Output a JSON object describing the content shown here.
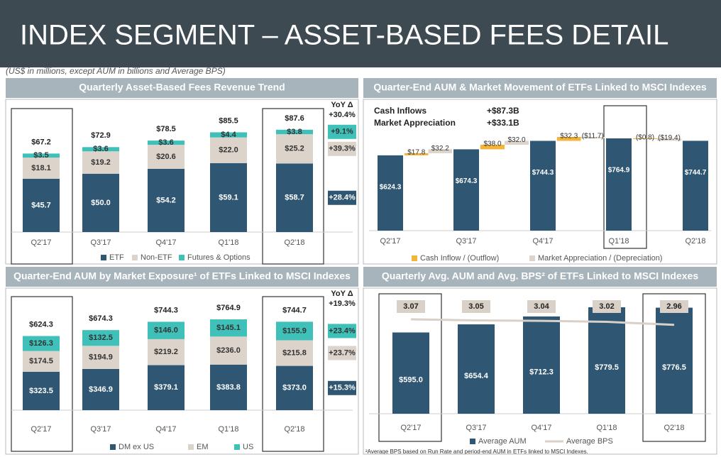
{
  "title": "INDEX SEGMENT – ASSET-BASED FEES DETAIL",
  "subtitle": "(US$ in millions, except AUM in billions and Average BPS)",
  "footnote": "²Average BPS based on Run Rate and period-end AUM in ETFs linked to MSCI Indexes.",
  "chart_data": [
    {
      "type": "stacked-bar",
      "title": "Quarterly Asset-Based Fees Revenue Trend",
      "categories": [
        "Q2'17",
        "Q3'17",
        "Q4'17",
        "Q1'18",
        "Q2'18"
      ],
      "series": [
        {
          "name": "ETF",
          "color": "#2f5672",
          "values": [
            45.7,
            50.0,
            54.2,
            59.1,
            58.7
          ],
          "value_labels": [
            "$45.7",
            "$50.0",
            "$54.2",
            "$59.1",
            "$58.7"
          ]
        },
        {
          "name": "Non-ETF",
          "color": "#dcd3ca",
          "values": [
            18.1,
            19.2,
            20.6,
            22.0,
            25.2
          ],
          "value_labels": [
            "$18.1",
            "$19.2",
            "$20.6",
            "$22.0",
            "$25.2"
          ]
        },
        {
          "name": "Futures & Options",
          "color": "#3fc0b9",
          "values": [
            3.5,
            3.6,
            3.6,
            4.4,
            3.8
          ],
          "value_labels": [
            "$3.5",
            "$3.6",
            "$3.6",
            "$4.4",
            "$3.8"
          ]
        }
      ],
      "totals": {
        "values": [
          67.2,
          72.9,
          78.5,
          85.5,
          87.6
        ],
        "value_labels": [
          "$67.2",
          "$72.9",
          "$78.5",
          "$85.5",
          "$87.6"
        ]
      },
      "yoy": {
        "title": "YoY Δ",
        "total": {
          "value": 30.4,
          "label": "+30.4%"
        },
        "series": [
          {
            "value": 28.4,
            "label": "+28.4%"
          },
          {
            "value": 39.3,
            "label": "+39.3%"
          },
          {
            "value": 9.1,
            "label": "+9.1%"
          }
        ]
      }
    },
    {
      "type": "waterfall",
      "title": "Quarter-End AUM & Market Movement of ETFs Linked to MSCI Indexes",
      "categories": [
        "Q2'17",
        "Q3'17",
        "Q4'17",
        "Q1'18",
        "Q2'18"
      ],
      "values": [
        624.3,
        674.3,
        744.3,
        764.9,
        744.7
      ],
      "value_labels": [
        "$624.3",
        "$674.3",
        "$744.3",
        "$764.9",
        "$744.7"
      ],
      "color": "#2f5672",
      "flows": [
        {
          "name": "Cash Inflow / (Outflow)",
          "color": "#f4b43a",
          "values": [
            17.8,
            38.0,
            32.3,
            -0.8
          ],
          "value_labels": [
            "$17.8",
            "$38.0",
            "$32.3",
            "($0.8)"
          ]
        },
        {
          "name": "Market Appreciation / (Depreciation)",
          "color": "#dcd3ca",
          "values": [
            32.2,
            32.0,
            -11.7,
            -19.4
          ],
          "value_labels": [
            "$32.2",
            "$32.0",
            "($11.7)",
            "($19.4)"
          ]
        }
      ],
      "summary": [
        {
          "name": "Cash Inflows",
          "value": 87.3,
          "label": "+$87.3B"
        },
        {
          "name": "Market Appreciation",
          "value": 33.1,
          "label": "+$33.1B"
        }
      ]
    },
    {
      "type": "stacked-bar",
      "title": "Quarter-End AUM by Market Exposure¹ of ETFs Linked to MSCI Indexes",
      "categories": [
        "Q2'17",
        "Q3'17",
        "Q4'17",
        "Q1'18",
        "Q2'18"
      ],
      "series": [
        {
          "name": "DM ex US",
          "color": "#2f5672",
          "values": [
            323.5,
            346.9,
            379.1,
            383.8,
            373.0
          ],
          "value_labels": [
            "$323.5",
            "$346.9",
            "$379.1",
            "$383.8",
            "$373.0"
          ]
        },
        {
          "name": "EM",
          "color": "#dcd3ca",
          "values": [
            174.5,
            194.9,
            219.2,
            236.0,
            215.8
          ],
          "value_labels": [
            "$174.5",
            "$194.9",
            "$219.2",
            "$236.0",
            "$215.8"
          ]
        },
        {
          "name": "US",
          "color": "#3fc0b9",
          "values": [
            126.3,
            132.5,
            146.0,
            145.1,
            155.9
          ],
          "value_labels": [
            "$126.3",
            "$132.5",
            "$146.0",
            "$145.1",
            "$155.9"
          ]
        }
      ],
      "totals": {
        "values": [
          624.3,
          674.3,
          744.3,
          764.9,
          744.7
        ],
        "value_labels": [
          "$624.3",
          "$674.3",
          "$744.3",
          "$764.9",
          "$744.7"
        ]
      },
      "yoy": {
        "title": "YoY Δ",
        "total": {
          "value": 19.3,
          "label": "+19.3%"
        },
        "series": [
          {
            "value": 15.3,
            "label": "+15.3%"
          },
          {
            "value": 23.7,
            "label": "+23.7%"
          },
          {
            "value": 23.4,
            "label": "+23.4%"
          }
        ]
      }
    },
    {
      "type": "bar-line",
      "title": "Quarterly Avg. AUM and Avg. BPS² of ETFs Linked to MSCI Indexes",
      "categories": [
        "Q2'17",
        "Q3'17",
        "Q4'17",
        "Q1'18",
        "Q2'18"
      ],
      "series": [
        {
          "name": "Average AUM",
          "color": "#2f5672",
          "values": [
            595.0,
            654.4,
            712.3,
            779.5,
            776.5
          ],
          "value_labels": [
            "$595.0",
            "$654.4",
            "$712.3",
            "$779.5",
            "$776.5"
          ]
        },
        {
          "name": "Average BPS",
          "color": "#d9d0c7",
          "axis": "y2",
          "values": [
            3.07,
            3.05,
            3.04,
            3.02,
            2.96
          ]
        }
      ]
    }
  ]
}
